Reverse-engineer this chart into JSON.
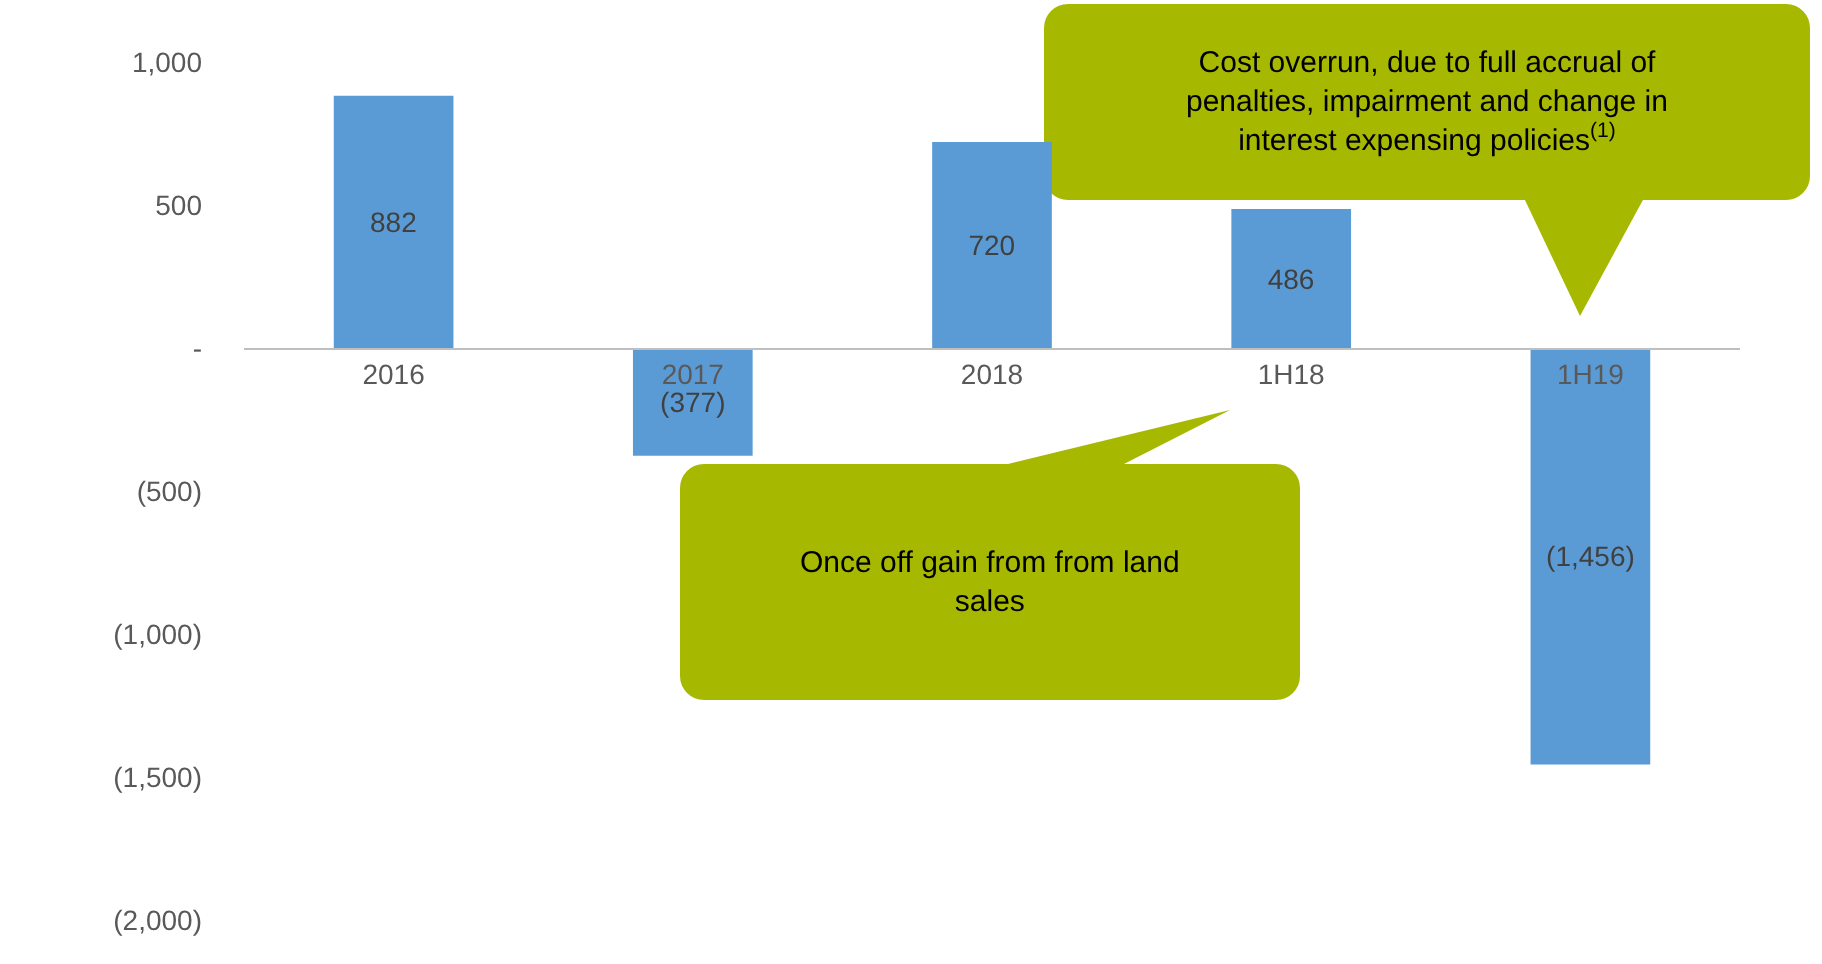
{
  "chart_data": {
    "type": "bar",
    "categories": [
      "2016",
      "2017",
      "2018",
      "1H18",
      "1H19"
    ],
    "values": [
      882,
      -377,
      720,
      486,
      -1456
    ],
    "value_labels": [
      "882",
      "(377)",
      "720",
      "486",
      "(1,456)"
    ],
    "color": "#5b9bd5",
    "ylim": [
      -2000,
      1000
    ],
    "yticks": [
      {
        "value": 1000,
        "label": "1,000"
      },
      500,
      {
        "value": 0,
        "label": "-"
      },
      {
        "value": -500,
        "label": "(500)"
      },
      {
        "value": -1000,
        "label": "(1,000)"
      },
      {
        "value": -1500,
        "label": "(1,500)"
      },
      {
        "value": -2000,
        "label": "(2,000)"
      }
    ],
    "annotations": [
      "Cost overrun, due to full accrual of penalties, impairment and change in interest expensing policies$^{(1)}$",
      "Once off gain from from land sales"
    ]
  }
}
